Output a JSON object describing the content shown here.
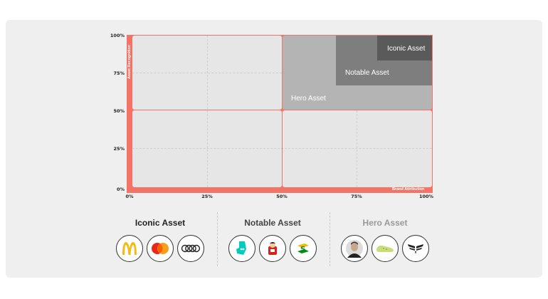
{
  "chart": {
    "y_ticks": [
      "100%",
      "75%",
      "50%",
      "25%",
      "0%"
    ],
    "x_ticks": [
      "0%",
      "25%",
      "50%",
      "75%",
      "100%"
    ],
    "y_axis_label": "Asset Recognition",
    "x_axis_label": "Brand Attribution",
    "zones": {
      "iconic": "Iconic Asset",
      "notable": "Notable Asset",
      "hero": "Hero Asset"
    }
  },
  "legend": {
    "groups": [
      {
        "title": "Iconic Asset",
        "logos": [
          "mcdonalds-logo",
          "mastercard-logo",
          "audi-logo"
        ]
      },
      {
        "title": "Notable Asset",
        "logos": [
          "deliveroo-logo",
          "kinder-logo",
          "subway-logo"
        ]
      },
      {
        "title": "Hero Asset",
        "logos": [
          "celebrity-face-logo",
          "green-shoe-logo",
          "armani-eagle-logo"
        ]
      }
    ]
  },
  "colors": {
    "frame": "#f37467",
    "quadrant": "#e6e6e6",
    "hero_zone": "#b4b4b4",
    "notable_zone": "#7e7e7e",
    "iconic_zone": "#5a5a5a",
    "hero_title": "#999999"
  }
}
